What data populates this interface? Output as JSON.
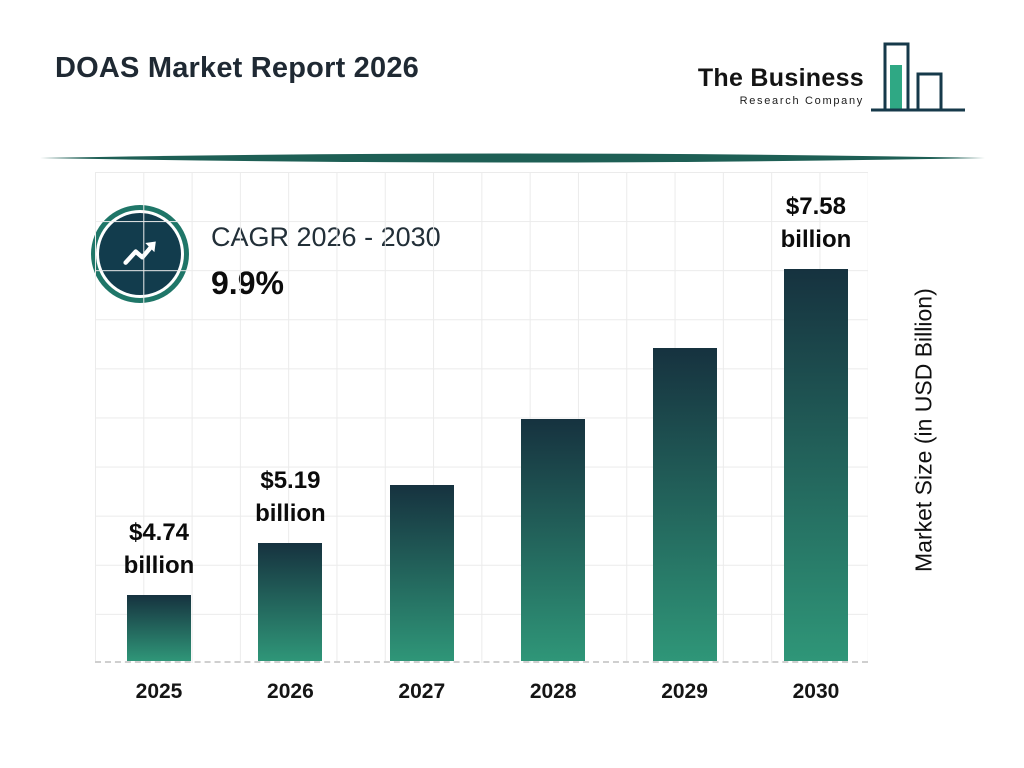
{
  "header": {
    "title": "DOAS Market Report 2026",
    "logo": {
      "line1": "The Business",
      "line2": "Research Company",
      "icon": "bar-chart-logo-icon"
    }
  },
  "cagr_badge": {
    "icon": "trending-up-icon",
    "label": "CAGR 2026 - 2030",
    "value": "9.9%"
  },
  "chart_data": {
    "type": "bar",
    "categories": [
      "2025",
      "2026",
      "2027",
      "2028",
      "2029",
      "2030"
    ],
    "values": [
      4.74,
      5.19,
      5.7,
      6.27,
      6.89,
      7.58
    ],
    "bar_labels": [
      {
        "amount": "$4.74",
        "unit": "billion"
      },
      {
        "amount": "$5.19",
        "unit": "billion"
      },
      null,
      null,
      null,
      {
        "amount": "$7.58",
        "unit": "billion"
      }
    ],
    "xlabel": "",
    "ylabel": "Market Size (in USD Billion)",
    "grid": true,
    "baseline_style": "dashed",
    "legend": "none"
  },
  "colors": {
    "bar_gradient_top": "#16323f",
    "bar_gradient_bottom": "#2f9678",
    "divider": "#1e5f55",
    "badge_fill": "#123c4d",
    "badge_ring": "#1f7668",
    "logo_outline": "#16394a",
    "logo_accent": "#2fa884",
    "grid_line": "#ebebeb",
    "text_dark": "#111111"
  }
}
